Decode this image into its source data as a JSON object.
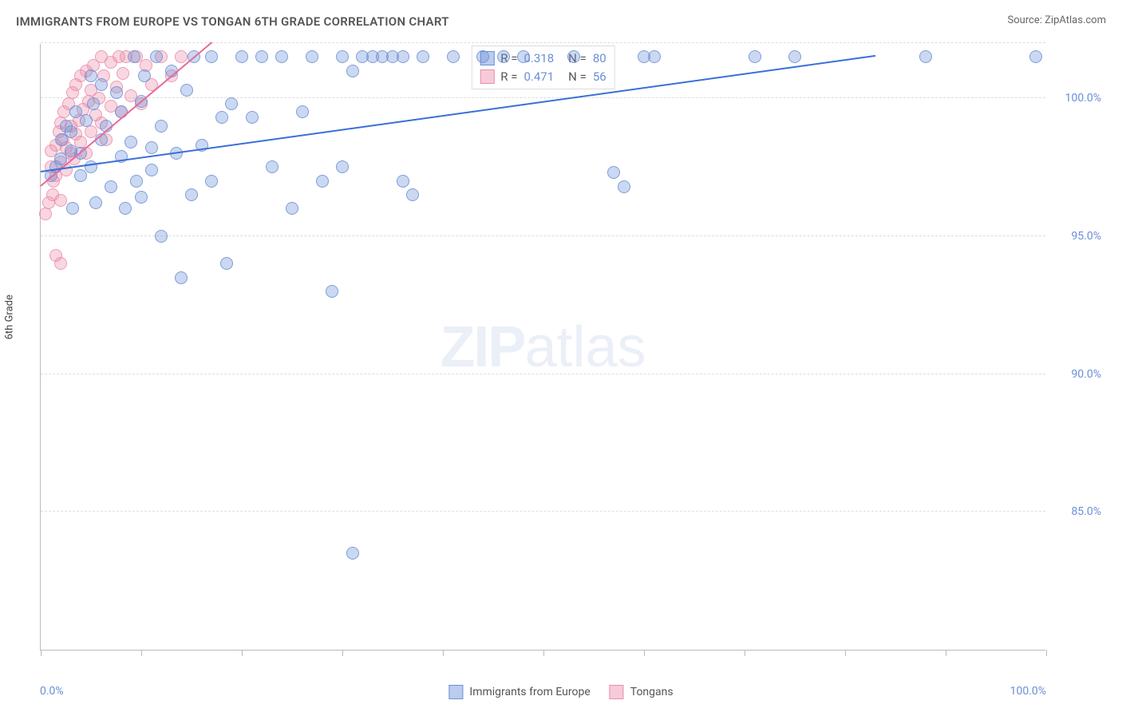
{
  "header": {
    "title": "IMMIGRANTS FROM EUROPE VS TONGAN 6TH GRADE CORRELATION CHART",
    "source": "Source: ZipAtlas.com"
  },
  "chart": {
    "type": "scatter",
    "ylabel": "6th Grade",
    "xlim": [
      0,
      100
    ],
    "ylim": [
      80,
      102
    ],
    "yticks": [
      {
        "value": 85,
        "label": "85.0%"
      },
      {
        "value": 90,
        "label": "90.0%"
      },
      {
        "value": 95,
        "label": "95.0%"
      },
      {
        "value": 100,
        "label": "100.0%"
      },
      {
        "value": 102,
        "label": ""
      }
    ],
    "xticks_minor": [
      0,
      10,
      20,
      30,
      40,
      50,
      60,
      70,
      80,
      90,
      100
    ],
    "xtick_labels": {
      "left": "0.0%",
      "right": "100.0%"
    },
    "marker_radius": 8,
    "background_color": "#ffffff",
    "grid_color": "#dddddd",
    "series": {
      "blue": {
        "name": "Immigrants from Europe",
        "color_fill": "rgba(107,143,214,0.35)",
        "color_stroke": "#6b8fd6",
        "R": "0.318",
        "N": "80",
        "trend": {
          "x1": 0,
          "y1": 97.3,
          "x2": 83,
          "y2": 101.5,
          "color": "#3a6fd8"
        },
        "points": [
          [
            1,
            97.2
          ],
          [
            1.5,
            97.5
          ],
          [
            2,
            97.8
          ],
          [
            2.1,
            98.5
          ],
          [
            2.5,
            99.0
          ],
          [
            3,
            98.1
          ],
          [
            3,
            98.8
          ],
          [
            3.2,
            96.0
          ],
          [
            3.5,
            99.5
          ],
          [
            4,
            98.0
          ],
          [
            4,
            97.2
          ],
          [
            4.5,
            99.2
          ],
          [
            5,
            100.8
          ],
          [
            5,
            97.5
          ],
          [
            5.2,
            99.8
          ],
          [
            5.5,
            96.2
          ],
          [
            6,
            98.5
          ],
          [
            6,
            100.5
          ],
          [
            6.5,
            99.0
          ],
          [
            7,
            96.8
          ],
          [
            7.5,
            100.2
          ],
          [
            8,
            97.9
          ],
          [
            8,
            99.5
          ],
          [
            8.4,
            96.0
          ],
          [
            9,
            98.4
          ],
          [
            9.3,
            101.5
          ],
          [
            9.5,
            97.0
          ],
          [
            10,
            99.9
          ],
          [
            10,
            96.4
          ],
          [
            10.3,
            100.8
          ],
          [
            11,
            98.2
          ],
          [
            11,
            97.4
          ],
          [
            11.5,
            101.5
          ],
          [
            12,
            99.0
          ],
          [
            12,
            95.0
          ],
          [
            13,
            101.0
          ],
          [
            13.5,
            98.0
          ],
          [
            14,
            93.5
          ],
          [
            14.5,
            100.3
          ],
          [
            15,
            96.5
          ],
          [
            15.2,
            101.5
          ],
          [
            16,
            98.3
          ],
          [
            17,
            97.0
          ],
          [
            17,
            101.5
          ],
          [
            18,
            99.3
          ],
          [
            18.5,
            94.0
          ],
          [
            19,
            99.8
          ],
          [
            20,
            101.5
          ],
          [
            21,
            99.3
          ],
          [
            22,
            101.5
          ],
          [
            23,
            97.5
          ],
          [
            24,
            101.5
          ],
          [
            25,
            96.0
          ],
          [
            26,
            99.5
          ],
          [
            27,
            101.5
          ],
          [
            28,
            97.0
          ],
          [
            29,
            93.0
          ],
          [
            30,
            97.5
          ],
          [
            30,
            101.5
          ],
          [
            31,
            101.0
          ],
          [
            32,
            101.5
          ],
          [
            33,
            101.5
          ],
          [
            34,
            101.5
          ],
          [
            35,
            101.5
          ],
          [
            36,
            101.5
          ],
          [
            36,
            97.0
          ],
          [
            37,
            96.5
          ],
          [
            38,
            101.5
          ],
          [
            41,
            101.5
          ],
          [
            44,
            101.5
          ],
          [
            46,
            101.5
          ],
          [
            48,
            101.5
          ],
          [
            53,
            101.5
          ],
          [
            57,
            97.3
          ],
          [
            58,
            96.8
          ],
          [
            60,
            101.5
          ],
          [
            61,
            101.5
          ],
          [
            71,
            101.5
          ],
          [
            75,
            101.5
          ],
          [
            88,
            101.5
          ],
          [
            99,
            101.5
          ],
          [
            31,
            83.5
          ]
        ]
      },
      "pink": {
        "name": "Tongans",
        "color_fill": "rgba(236,140,170,0.35)",
        "color_stroke": "#ec8caa",
        "R": "0.471",
        "N": "56",
        "trend": {
          "x1": 0,
          "y1": 96.8,
          "x2": 17,
          "y2": 102,
          "color": "#e86a97"
        },
        "points": [
          [
            0.5,
            95.8
          ],
          [
            0.8,
            96.2
          ],
          [
            1,
            97.5
          ],
          [
            1,
            98.1
          ],
          [
            1.2,
            96.5
          ],
          [
            1.3,
            97.0
          ],
          [
            1.5,
            98.3
          ],
          [
            1.5,
            97.2
          ],
          [
            1.8,
            98.8
          ],
          [
            2,
            99.1
          ],
          [
            2,
            97.7
          ],
          [
            2,
            96.3
          ],
          [
            2.2,
            98.5
          ],
          [
            2.3,
            99.5
          ],
          [
            2.5,
            97.4
          ],
          [
            2.5,
            98.2
          ],
          [
            2.8,
            99.8
          ],
          [
            3,
            98.0
          ],
          [
            3,
            99.0
          ],
          [
            3.2,
            100.2
          ],
          [
            3.3,
            97.8
          ],
          [
            3.5,
            98.7
          ],
          [
            3.5,
            100.5
          ],
          [
            3.8,
            99.2
          ],
          [
            4,
            100.8
          ],
          [
            4,
            98.4
          ],
          [
            4.2,
            99.6
          ],
          [
            4.5,
            101.0
          ],
          [
            4.5,
            98.0
          ],
          [
            4.8,
            99.9
          ],
          [
            5,
            100.3
          ],
          [
            5,
            98.8
          ],
          [
            5.2,
            101.2
          ],
          [
            5.5,
            99.4
          ],
          [
            5.8,
            100.0
          ],
          [
            6,
            101.5
          ],
          [
            6,
            99.1
          ],
          [
            6.3,
            100.8
          ],
          [
            6.5,
            98.5
          ],
          [
            7,
            101.3
          ],
          [
            7,
            99.7
          ],
          [
            7.5,
            100.4
          ],
          [
            7.8,
            101.5
          ],
          [
            8,
            99.5
          ],
          [
            8.2,
            100.9
          ],
          [
            8.5,
            101.5
          ],
          [
            9,
            100.1
          ],
          [
            9.5,
            101.5
          ],
          [
            10,
            99.8
          ],
          [
            10.5,
            101.2
          ],
          [
            11,
            100.5
          ],
          [
            12,
            101.5
          ],
          [
            13,
            100.8
          ],
          [
            14,
            101.5
          ],
          [
            1.5,
            94.3
          ],
          [
            2,
            94.0
          ]
        ]
      }
    },
    "watermark": {
      "zip": "ZIP",
      "atlas": "atlas"
    },
    "legend": [
      {
        "swatch": "blue",
        "label": "Immigrants from Europe"
      },
      {
        "swatch": "pink",
        "label": "Tongans"
      }
    ]
  }
}
